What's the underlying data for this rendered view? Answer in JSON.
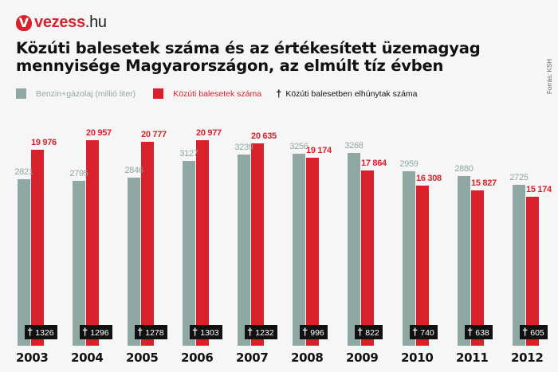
{
  "brand": {
    "mark": "V",
    "name": "vezess",
    "tld": ".hu"
  },
  "title": "Közúti balesetek száma és az értékesített üzemagyag mennyisége Magyarországon, az elmúlt tíz évben",
  "legend": [
    {
      "label": "Benzin+gázolaj (millió liter)",
      "color": "#8fa8a4",
      "type": "swatch"
    },
    {
      "label": "Közúti balesetek száma",
      "color": "#d9212c",
      "type": "swatch"
    },
    {
      "label": "Közúti balesetben elhúnytak száma",
      "color": "#111111",
      "type": "cross",
      "symbol": "†"
    }
  ],
  "source": "Forrás: KSH",
  "colors": {
    "fuel": "#8fa8a4",
    "accidents": "#d9212c",
    "deaths": "#111111",
    "background": "#f6f6f6"
  },
  "chart_data": {
    "type": "bar",
    "title": "Közúti balesetek száma és az értékesített üzemagyag mennyisége Magyarországon, az elmúlt tíz évben",
    "xlabel": "",
    "ylabel": "",
    "categories": [
      "2003",
      "2004",
      "2005",
      "2006",
      "2007",
      "2008",
      "2009",
      "2010",
      "2011",
      "2012"
    ],
    "series": [
      {
        "name": "Benzin+gázolaj (millió liter)",
        "values": [
          2821,
          2795,
          2846,
          3127,
          3239,
          3256,
          3268,
          2959,
          2880,
          2725
        ],
        "labels": [
          "2821",
          "2795",
          "2846",
          "3127",
          "3239",
          "3256",
          "3268",
          "2959",
          "2880",
          "2725"
        ]
      },
      {
        "name": "Közúti balesetek száma",
        "values": [
          19976,
          20957,
          20777,
          20977,
          20635,
          19174,
          17864,
          16308,
          15827,
          15174
        ],
        "labels": [
          "19 976",
          "20 957",
          "20 777",
          "20 977",
          "20 635",
          "19 174",
          "17 864",
          "16 308",
          "15 827",
          "15 174"
        ]
      },
      {
        "name": "Közúti balesetben elhúnytak száma",
        "values": [
          1326,
          1296,
          1278,
          1303,
          1232,
          996,
          822,
          740,
          638,
          605
        ],
        "labels": [
          "1326",
          "1296",
          "1278",
          "1303",
          "1232",
          "996",
          "822",
          "740",
          "638",
          "605"
        ]
      }
    ],
    "grid": false,
    "legend_position": "top",
    "source": "Forrás: KSH"
  }
}
